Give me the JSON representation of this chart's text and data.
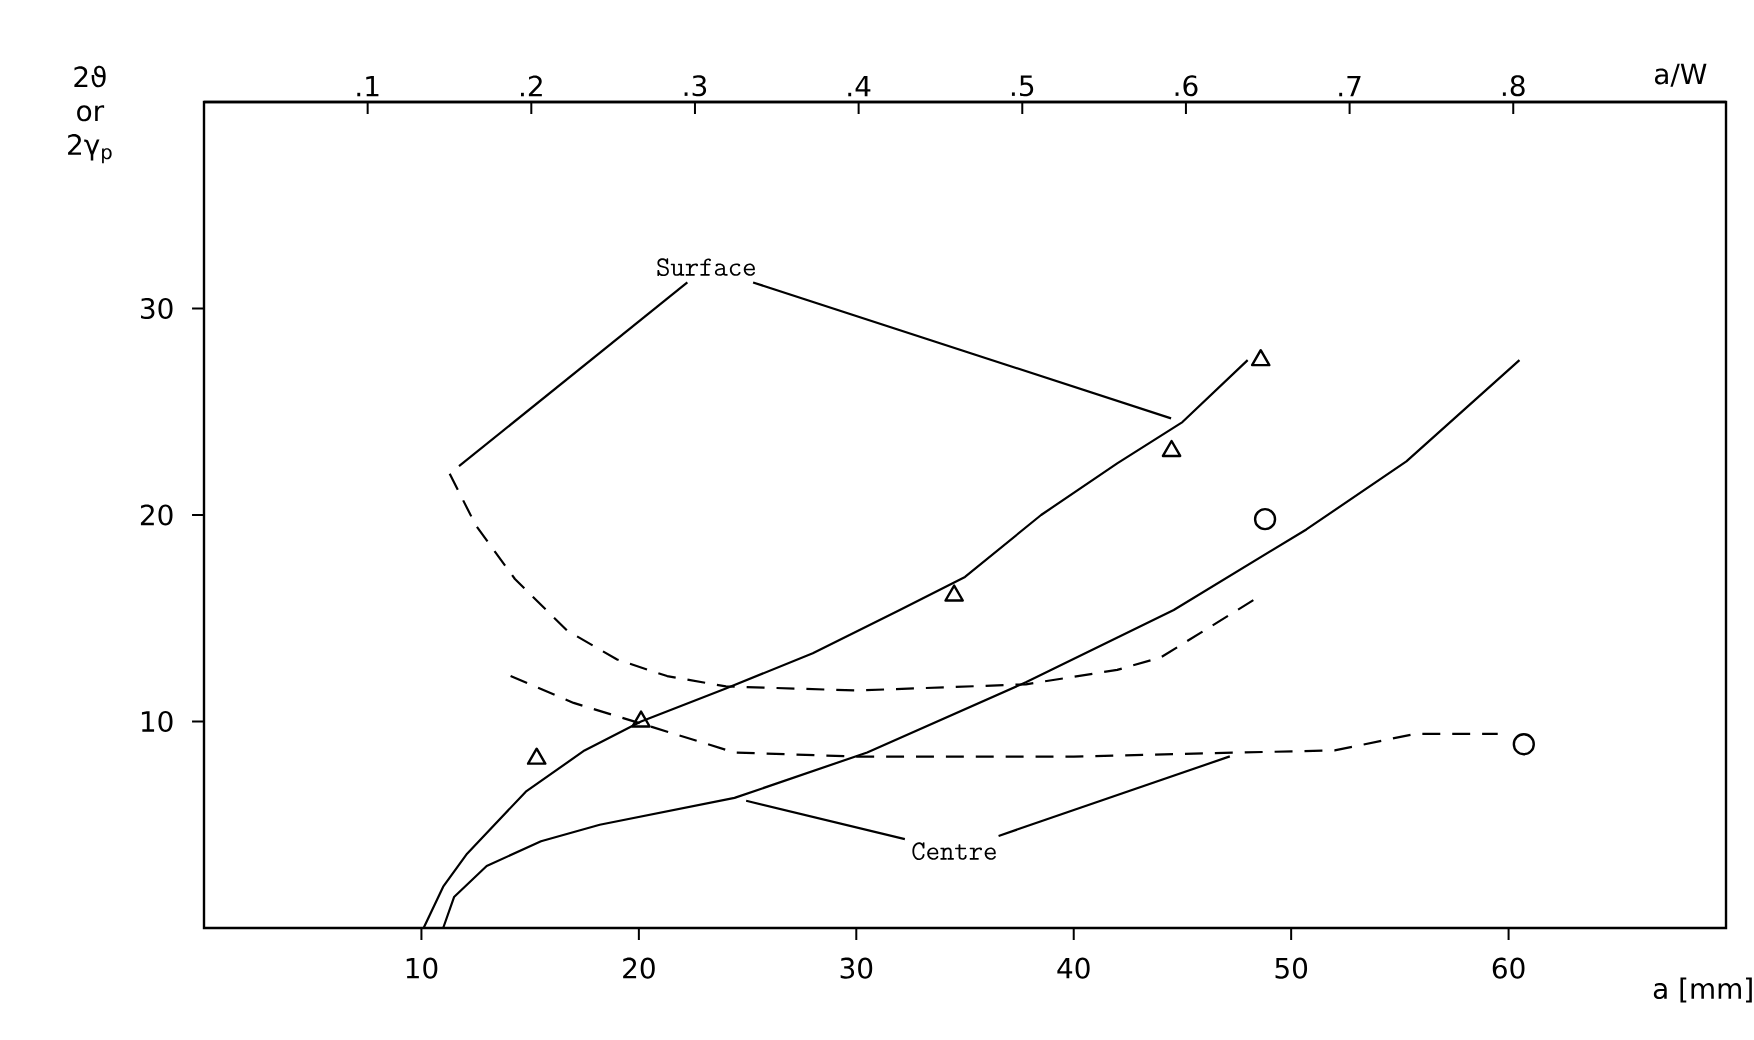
{
  "chart_data": {
    "type": "line",
    "xlabel": "a [mm]",
    "ylabel": "2ϑ or 2γ$_{p}$",
    "x2label": "a/W",
    "xlim": [
      0,
      70
    ],
    "xticks": [
      10,
      20,
      30,
      40,
      50,
      60
    ],
    "ylim": [
      0,
      40
    ],
    "yticks": [
      10,
      20,
      30
    ],
    "x2lim": [
      0,
      0.93
    ],
    "x2ticks": [
      {
        "value": 0.1,
        "label": ".1"
      },
      {
        "value": 0.2,
        "label": ".2"
      },
      {
        "value": 0.3,
        "label": ".3"
      },
      {
        "value": 0.4,
        "label": ".4"
      },
      {
        "value": 0.5,
        "label": ".5"
      },
      {
        "value": 0.6,
        "label": ".6"
      },
      {
        "value": 0.7,
        "label": ".7"
      },
      {
        "value": 0.8,
        "label": ".8"
      }
    ],
    "annotations": [
      {
        "text": "Surface",
        "x": 45,
        "y": 24.5
      },
      {
        "text": "Centre",
        "x": 24.4,
        "y": 6.3
      }
    ],
    "series": [
      {
        "color": "#000000",
        "line_style": "solid",
        "x": [
          10.1,
          11,
          12.1,
          14.8,
          17.5,
          20.1,
          24,
          28,
          32,
          35,
          38.5,
          42,
          45,
          48
        ],
        "values": [
          0,
          2,
          3.6,
          6.6,
          8.6,
          10,
          11.6,
          13.3,
          15.4,
          17,
          20,
          22.5,
          24.5,
          27.5
        ]
      },
      {
        "type": "scatter",
        "color": "#000000",
        "marker": "triangle",
        "x": [
          15.3,
          20.1,
          34.5,
          44.5,
          48.6
        ],
        "values": [
          8.2,
          10,
          16.1,
          23.1,
          27.5
        ]
      },
      {
        "color": "#000000",
        "line_style": "solid",
        "x": [
          11,
          11.5,
          13,
          15.5,
          18.2,
          24.4,
          30.5,
          37.8,
          44.6,
          50.7,
          55.3,
          60.5
        ],
        "values": [
          0,
          1.5,
          3,
          4.2,
          5,
          6.3,
          8.5,
          11.9,
          15.4,
          19.3,
          22.6,
          27.5
        ]
      },
      {
        "type": "scatter",
        "color": "#000000",
        "marker": "circle",
        "x": [
          48.8,
          60.7
        ],
        "values": [
          19.8,
          8.9
        ]
      },
      {
        "color": "#000000",
        "line_style": "dashed",
        "x": [
          11.3,
          12.5,
          14.3,
          16.7,
          19,
          21.3,
          24,
          30,
          37.8,
          42,
          44,
          48.3
        ],
        "values": [
          22,
          19.5,
          16.9,
          14.4,
          13,
          12.2,
          11.7,
          11.5,
          11.8,
          12.5,
          13.1,
          15.9
        ]
      },
      {
        "color": "#000000",
        "line_style": "dashed",
        "x": [
          14.1,
          17,
          20.1,
          24.4,
          30,
          40,
          47.7,
          52,
          55.7,
          59.5
        ],
        "values": [
          12.2,
          10.9,
          9.9,
          8.5,
          8.3,
          8.3,
          8.5,
          8.6,
          9.4,
          9.4
        ]
      }
    ]
  }
}
